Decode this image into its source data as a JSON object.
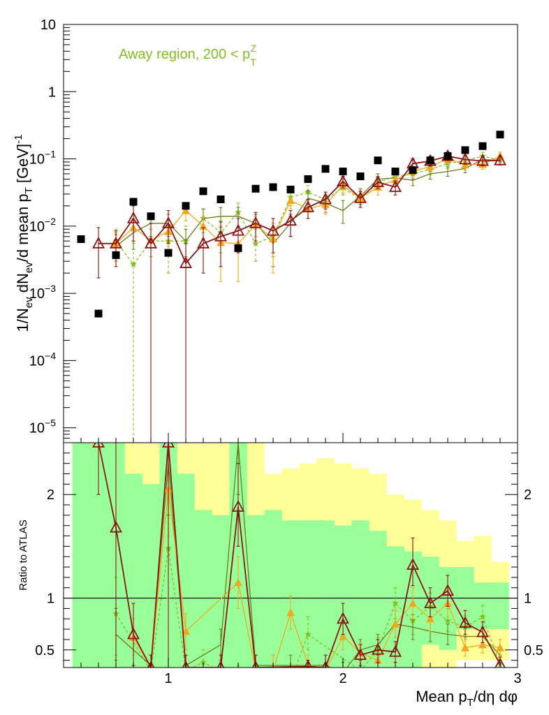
{
  "chart_data": [
    {
      "type": "scatter",
      "panel": "main",
      "yscale": "log",
      "xlim": [
        0.4,
        3.0
      ],
      "ylim": [
        6e-06,
        10
      ],
      "ylabel": "1/N_ev dN_ev/d mean p_T [GeV]^-1",
      "ylabel_parts": {
        "a": "1/N",
        "b": "ev",
        "c": " dN",
        "d": "ev",
        "e": "/d mean p",
        "f": "T",
        "g": " [GeV]",
        "h": "-1"
      },
      "ytick_labels": [
        {
          "v": 10,
          "base": "10",
          "exp": ""
        },
        {
          "v": 1,
          "base": "1",
          "exp": ""
        },
        {
          "v": 0.1,
          "base": "10",
          "exp": "−1"
        },
        {
          "v": 0.01,
          "base": "10",
          "exp": "−2"
        },
        {
          "v": 0.001,
          "base": "10",
          "exp": "−3"
        },
        {
          "v": 0.0001,
          "base": "10",
          "exp": "−4"
        },
        {
          "v": 1e-05,
          "base": "10",
          "exp": "−5"
        }
      ],
      "annotation": {
        "text": "Away region, 200 < p",
        "sup": "Z",
        "sub": "T",
        "color": "#7fbf1f"
      },
      "data_series": {
        "color": "#000000",
        "x": [
          0.5,
          0.6,
          0.7,
          0.8,
          0.9,
          1.0,
          1.1,
          1.2,
          1.3,
          1.4,
          1.5,
          1.6,
          1.7,
          1.8,
          1.9,
          2.0,
          2.1,
          2.2,
          2.3,
          2.4,
          2.5,
          2.6,
          2.7,
          2.8,
          2.9
        ],
        "y": [
          0.0064,
          0.0005,
          0.0037,
          0.023,
          0.014,
          0.004,
          0.02,
          0.033,
          0.025,
          0.0047,
          0.036,
          0.038,
          0.035,
          0.05,
          0.071,
          0.065,
          0.055,
          0.095,
          0.065,
          0.068,
          0.095,
          0.11,
          0.135,
          0.155,
          0.23
        ]
      },
      "series": [
        {
          "color": "#7fbf1f",
          "marker": "star",
          "dashed": true,
          "x": [
            0.7,
            0.8,
            0.9,
            1.0,
            1.1,
            1.2,
            1.3,
            1.4,
            1.5,
            1.6,
            1.7,
            1.8,
            1.9,
            2.0,
            2.1,
            2.2,
            2.3,
            2.4,
            2.5,
            2.6,
            2.7,
            2.8,
            2.9
          ],
          "y": [
            0.006,
            0.0027,
            0.006,
            0.006,
            0.006,
            0.013,
            0.008,
            0.016,
            0.0055,
            0.007,
            0.027,
            0.032,
            0.025,
            0.037,
            0.025,
            0.045,
            0.055,
            0.06,
            0.07,
            0.085,
            0.095,
            0.11,
            0.095
          ],
          "lo": [
            0.0035,
            5.5e-06,
            0.0035,
            0.002,
            0.003,
            0.008,
            0.004,
            0.01,
            0.003,
            0.0035,
            0.02,
            0.024,
            0.019,
            0.029,
            0.019,
            0.036,
            0.045,
            0.05,
            0.058,
            0.072,
            0.082,
            0.095,
            0.082
          ],
          "hi": [
            0.009,
            0.0055,
            0.009,
            0.01,
            0.01,
            0.018,
            0.012,
            0.022,
            0.009,
            0.011,
            0.034,
            0.04,
            0.032,
            0.046,
            0.032,
            0.055,
            0.066,
            0.071,
            0.083,
            0.1,
            0.11,
            0.125,
            0.11
          ]
        },
        {
          "color": "#6b7a1a",
          "marker": "line",
          "dashed": false,
          "x": [
            0.7,
            0.8,
            0.9,
            1.0,
            1.1,
            1.2,
            1.3,
            1.4,
            1.5,
            1.6,
            1.7,
            1.8,
            1.9,
            2.0,
            2.1,
            2.2,
            2.3,
            2.4,
            2.5,
            2.6,
            2.7,
            2.8,
            2.9
          ],
          "y": [
            0.005,
            0.008,
            0.011,
            0.011,
            0.006,
            0.013,
            0.014,
            0.014,
            0.011,
            0.0055,
            0.011,
            0.026,
            0.022,
            0.017,
            0.028,
            0.05,
            0.052,
            0.048,
            0.06,
            0.065,
            0.072,
            0.098,
            0.095
          ],
          "lo": [
            0.003,
            0.0045,
            0.007,
            0.007,
            0.0035,
            0.009,
            0.0095,
            0.0095,
            0.007,
            0.0025,
            0.007,
            0.019,
            0.016,
            0.011,
            0.021,
            0.041,
            0.043,
            0.04,
            0.05,
            0.055,
            0.062,
            0.085,
            0.082
          ],
          "hi": [
            0.0075,
            0.012,
            0.015,
            0.015,
            0.009,
            0.018,
            0.019,
            0.019,
            0.015,
            0.0095,
            0.015,
            0.034,
            0.029,
            0.024,
            0.036,
            0.06,
            0.062,
            0.057,
            0.071,
            0.076,
            0.083,
            0.111,
            0.108
          ]
        },
        {
          "color": "#f0a81e",
          "marker": "triangle",
          "dashed": false,
          "x": [
            0.7,
            0.8,
            0.9,
            1.0,
            1.1,
            1.2,
            1.3,
            1.4,
            1.5,
            1.6,
            1.7,
            1.8,
            1.9,
            2.0,
            2.1,
            2.2,
            2.3,
            2.4,
            2.5,
            2.6,
            2.7,
            2.8,
            2.9
          ],
          "y": [
            0.0055,
            0.0095,
            0.0062,
            0.0083,
            0.017,
            0.01,
            0.0057,
            0.0055,
            0.0105,
            0.0065,
            0.024,
            0.018,
            0.021,
            0.04,
            0.026,
            0.038,
            0.049,
            0.065,
            0.077,
            0.1,
            0.082,
            0.083,
            0.11
          ],
          "lo": [
            0.003,
            0.006,
            0.0035,
            0.005,
            0.012,
            0.0065,
            0.0015,
            0.0015,
            0.007,
            0.002,
            0.018,
            0.013,
            0.015,
            0.031,
            0.019,
            0.029,
            0.039,
            0.053,
            0.064,
            0.085,
            0.069,
            0.07,
            0.094
          ],
          "hi": [
            0.008,
            0.013,
            0.009,
            0.012,
            0.022,
            0.014,
            0.01,
            0.01,
            0.014,
            0.011,
            0.031,
            0.024,
            0.028,
            0.049,
            0.033,
            0.047,
            0.059,
            0.077,
            0.09,
            0.115,
            0.095,
            0.096,
            0.126
          ]
        },
        {
          "color": "#8b1414",
          "marker": "triangle-open",
          "dashed": false,
          "x": [
            0.6,
            0.7,
            0.8,
            0.9,
            1.0,
            1.1,
            1.2,
            1.3,
            1.4,
            1.5,
            1.6,
            1.7,
            1.8,
            1.9,
            2.0,
            2.1,
            2.2,
            2.3,
            2.4,
            2.5,
            2.6,
            2.7,
            2.8,
            2.9
          ],
          "y": [
            0.0055,
            0.0055,
            0.013,
            0.0055,
            0.011,
            0.0028,
            0.0055,
            0.007,
            0.0085,
            0.011,
            0.0085,
            0.012,
            0.019,
            0.025,
            0.046,
            0.026,
            0.045,
            0.038,
            0.085,
            0.093,
            0.11,
            0.098,
            0.093,
            0.095
          ],
          "lo": [
            0.0017,
            0.0025,
            0.006,
            5.5e-06,
            0.0055,
            5.5e-06,
            0.002,
            0.0025,
            0.004,
            0.006,
            0.004,
            0.007,
            0.013,
            0.018,
            0.037,
            0.019,
            0.036,
            0.029,
            0.07,
            0.078,
            0.094,
            0.083,
            0.079,
            0.081
          ],
          "hi": [
            0.0095,
            0.0085,
            0.02,
            0.011,
            0.017,
            0.0055,
            0.0095,
            0.0115,
            0.013,
            0.016,
            0.013,
            0.017,
            0.025,
            0.032,
            0.055,
            0.033,
            0.054,
            0.047,
            0.1,
            0.108,
            0.126,
            0.113,
            0.107,
            0.109
          ]
        }
      ]
    },
    {
      "type": "line",
      "panel": "ratio",
      "xlim": [
        0.4,
        3.0
      ],
      "ylim": [
        0.33,
        2.5
      ],
      "xlabel": "Mean p_T/dη dφ",
      "xlabel_parts": {
        "a": "Mean p",
        "b": "T",
        "c": "/dη dφ"
      },
      "ylabel": "Ratio to ATLAS",
      "xtick_labels": [
        {
          "v": 1,
          "label": "1"
        },
        {
          "v": 2,
          "label": "2"
        },
        {
          "v": 3,
          "label": "3"
        }
      ],
      "ytick_labels": [
        {
          "v": 2,
          "label": "2"
        },
        {
          "v": 1,
          "label": "1"
        },
        {
          "v": 0.5,
          "label": "0.5"
        }
      ],
      "reference_line": 1,
      "uncertainty_bands": {
        "bins": [
          0.45,
          0.55,
          0.65,
          0.75,
          0.85,
          0.95,
          1.05,
          1.15,
          1.25,
          1.35,
          1.45,
          1.55,
          1.65,
          1.75,
          1.85,
          1.95,
          2.05,
          2.15,
          2.25,
          2.35,
          2.45,
          2.55,
          2.65,
          2.75,
          2.85,
          2.95
        ],
        "yellow": {
          "color": "#ffff99",
          "hi": [
            2.5,
            2.5,
            2.5,
            2.5,
            2.5,
            2.5,
            2.5,
            2.5,
            2.5,
            2.5,
            2.5,
            2.2,
            2.25,
            2.3,
            2.35,
            2.3,
            2.25,
            2.2,
            2.0,
            1.95,
            1.85,
            1.75,
            1.55,
            1.6,
            1.35
          ],
          "lo": [
            0.33,
            0.33,
            0.33,
            0.33,
            0.33,
            0.33,
            0.33,
            0.33,
            0.33,
            0.33,
            0.33,
            0.33,
            0.33,
            0.33,
            0.33,
            0.33,
            0.33,
            0.33,
            0.33,
            0.33,
            0.33,
            0.33,
            0.4,
            0.4,
            0.4
          ]
        },
        "green": {
          "color": "#99ff99",
          "hi": [
            2.5,
            2.5,
            2.5,
            2.2,
            2.1,
            2.5,
            2.2,
            1.85,
            1.8,
            2.5,
            1.8,
            1.85,
            1.75,
            1.75,
            1.75,
            1.7,
            1.75,
            1.65,
            1.5,
            1.45,
            1.4,
            1.3,
            1.3,
            1.15,
            1.15
          ],
          "lo": [
            0.33,
            0.33,
            0.33,
            0.33,
            0.33,
            0.33,
            0.33,
            0.33,
            0.33,
            0.33,
            0.33,
            0.33,
            0.33,
            0.33,
            0.33,
            0.33,
            0.33,
            0.33,
            0.33,
            0.33,
            0.55,
            0.5,
            0.7,
            0.7,
            0.7
          ]
        }
      },
      "series": [
        {
          "color": "#7fbf1f",
          "marker": "star",
          "dashed": true,
          "x": [
            0.7,
            0.9,
            1.0,
            1.1,
            1.2,
            1.4,
            1.6,
            1.7,
            1.8,
            2.1,
            2.2,
            2.3,
            2.4,
            2.5,
            2.6,
            2.7,
            2.8,
            2.9
          ],
          "y": [
            0.85,
            0.3,
            1.48,
            0.3,
            0.38,
            0.2,
            0.3,
            0.2,
            0.65,
            0.3,
            0.5,
            0.95,
            0.78,
            0.92,
            0.78,
            0.72,
            0.82,
            0.36
          ],
          "lo": [
            0.45,
            0.2,
            1.0,
            0.2,
            0.3,
            0.1,
            0.2,
            0.1,
            0.5,
            0.2,
            0.4,
            0.8,
            0.65,
            0.8,
            0.68,
            0.62,
            0.72,
            0.3
          ],
          "hi": [
            1.2,
            0.45,
            2.0,
            0.45,
            0.5,
            0.35,
            0.45,
            0.35,
            0.82,
            0.45,
            0.62,
            1.1,
            0.92,
            1.05,
            0.9,
            0.83,
            0.93,
            0.45
          ]
        },
        {
          "color": "#6b7a1a",
          "marker": "line",
          "dashed": false,
          "x": [
            0.7,
            0.9,
            1.0,
            1.1,
            1.3,
            1.4,
            1.5,
            1.7,
            1.9,
            2.0,
            2.1,
            2.2,
            2.3,
            2.4,
            2.5,
            2.6,
            2.7,
            2.8,
            2.9
          ],
          "y": [
            0.65,
            0.35,
            2.3,
            0.35,
            0.55,
            2.5,
            0.35,
            0.35,
            0.35,
            0.28,
            0.5,
            0.55,
            0.75,
            0.72,
            0.68,
            0.65,
            0.63,
            0.63,
            0.45
          ],
          "lo": [
            0.4,
            0.25,
            1.8,
            0.25,
            0.4,
            2.0,
            0.25,
            0.25,
            0.25,
            0.2,
            0.4,
            0.45,
            0.62,
            0.6,
            0.58,
            0.55,
            0.53,
            0.55,
            0.38
          ],
          "hi": [
            0.9,
            0.45,
            2.5,
            0.45,
            0.7,
            2.5,
            0.45,
            0.45,
            0.45,
            0.38,
            0.6,
            0.65,
            0.88,
            0.84,
            0.78,
            0.75,
            0.73,
            0.72,
            0.52
          ]
        },
        {
          "color": "#f0a81e",
          "marker": "triangle",
          "dashed": false,
          "x": [
            0.8,
            0.9,
            1.0,
            1.1,
            1.4,
            1.5,
            1.6,
            1.7,
            1.8,
            1.9,
            2.0,
            2.1,
            2.2,
            2.3,
            2.4,
            2.5,
            2.6,
            2.7,
            2.8,
            2.9
          ],
          "y": [
            0.62,
            0.33,
            2.05,
            0.68,
            1.15,
            0.3,
            0.3,
            0.86,
            0.36,
            0.3,
            0.63,
            0.47,
            0.4,
            0.75,
            0.95,
            0.8,
            0.95,
            0.52,
            0.55,
            0.52
          ],
          "lo": [
            0.45,
            0.25,
            1.6,
            0.5,
            0.9,
            0.2,
            0.2,
            0.7,
            0.28,
            0.2,
            0.5,
            0.38,
            0.33,
            0.62,
            0.8,
            0.68,
            0.82,
            0.44,
            0.47,
            0.44
          ],
          "hi": [
            0.8,
            0.45,
            2.5,
            0.85,
            1.4,
            0.45,
            0.45,
            1.02,
            0.45,
            0.45,
            0.76,
            0.56,
            0.48,
            0.88,
            1.1,
            0.93,
            1.08,
            0.6,
            0.63,
            0.6
          ]
        },
        {
          "color": "#8b1414",
          "marker": "triangle-open",
          "dashed": false,
          "x": [
            0.6,
            0.7,
            0.8,
            0.9,
            1.0,
            1.1,
            1.3,
            1.4,
            1.5,
            1.8,
            1.9,
            2.0,
            2.1,
            2.2,
            2.3,
            2.4,
            2.5,
            2.6,
            2.7,
            2.8,
            2.9
          ],
          "y": [
            2.5,
            1.68,
            0.65,
            0.33,
            2.5,
            0.33,
            0.33,
            1.88,
            0.33,
            0.34,
            0.33,
            0.8,
            0.45,
            0.5,
            0.48,
            1.32,
            0.95,
            1.07,
            0.76,
            0.67,
            0.36
          ],
          "lo": [
            2.0,
            0.3,
            0.35,
            0.2,
            0.33,
            0.2,
            0.2,
            1.5,
            0.2,
            0.3,
            0.2,
            0.65,
            0.35,
            0.38,
            0.38,
            1.12,
            0.82,
            0.92,
            0.65,
            0.57,
            0.3
          ],
          "hi": [
            2.5,
            2.5,
            0.95,
            0.45,
            2.5,
            0.45,
            0.45,
            2.3,
            0.45,
            0.4,
            0.45,
            0.95,
            0.55,
            0.6,
            0.58,
            1.58,
            1.1,
            1.22,
            0.88,
            0.77,
            0.43
          ]
        }
      ]
    }
  ]
}
